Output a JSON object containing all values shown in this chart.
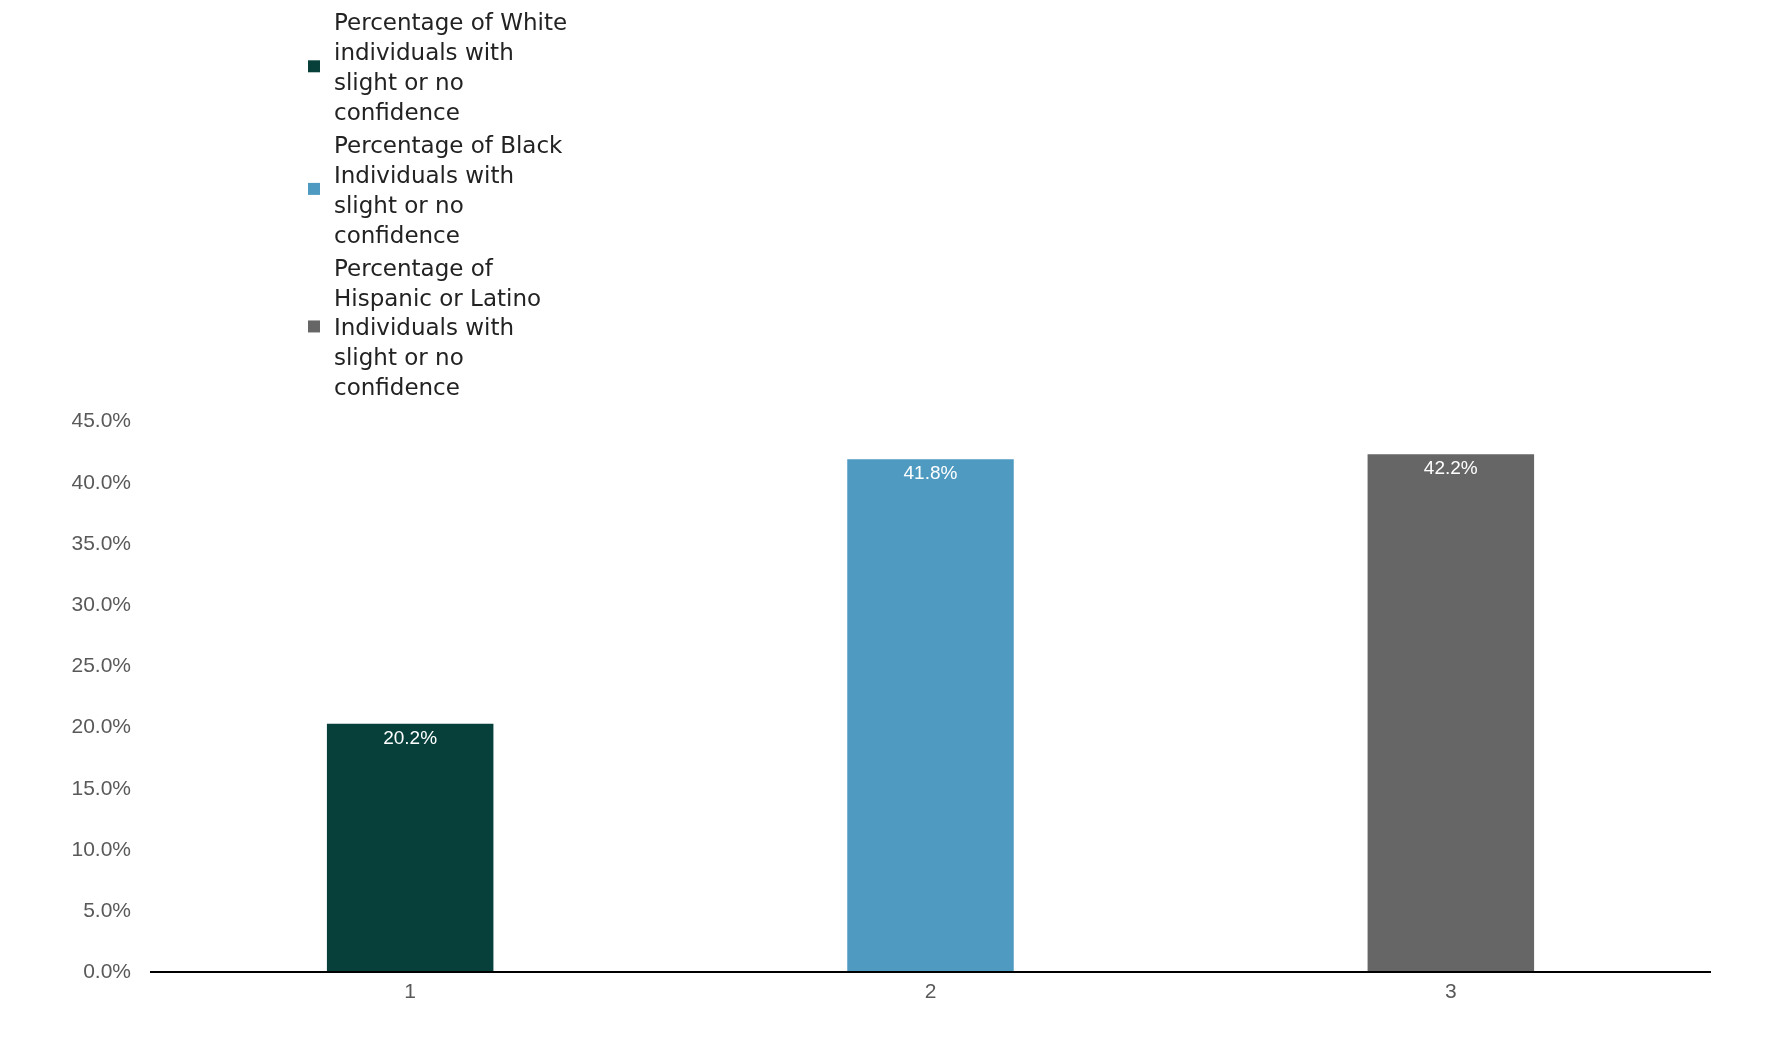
{
  "chart_data": {
    "type": "bar",
    "categories": [
      "1",
      "2",
      "3"
    ],
    "series": [
      {
        "name": "Percentage of White individuals with slight or no confidence",
        "color": "#07403b",
        "values": [
          20.2,
          null,
          null
        ],
        "value_labels": [
          "20.2%",
          null,
          null
        ]
      },
      {
        "name": "Percentage of Black Individuals with slight or no confidence",
        "color": "#4f9ac1",
        "values": [
          null,
          41.8,
          null
        ],
        "value_labels": [
          null,
          "41.8%",
          null
        ]
      },
      {
        "name": "Percentage of Hispanic or Latino Individuals with slight or no confidence",
        "color": "#666666",
        "values": [
          null,
          null,
          42.2
        ],
        "value_labels": [
          null,
          null,
          "42.2%"
        ]
      }
    ],
    "ylim": [
      0,
      45
    ],
    "yticks": [
      {
        "value": 0,
        "label": "0.0%"
      },
      {
        "value": 5,
        "label": "5.0%"
      },
      {
        "value": 10,
        "label": "10.0%"
      },
      {
        "value": 15,
        "label": "15.0%"
      },
      {
        "value": 20,
        "label": "20.0%"
      },
      {
        "value": 25,
        "label": "25.0%"
      },
      {
        "value": 30,
        "label": "30.0%"
      },
      {
        "value": 35,
        "label": "35.0%"
      },
      {
        "value": 40,
        "label": "40.0%"
      },
      {
        "value": 45,
        "label": "45.0%"
      }
    ],
    "legend": "top"
  }
}
